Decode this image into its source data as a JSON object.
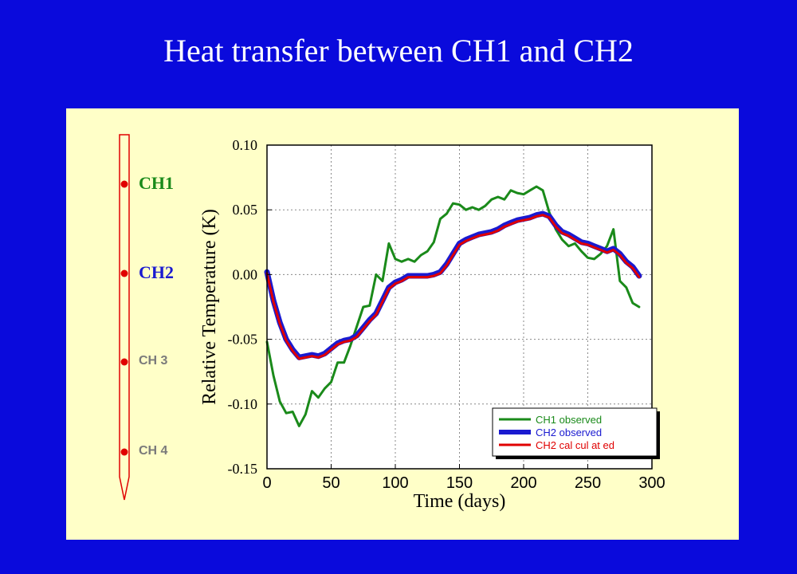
{
  "slide": {
    "title": "Heat transfer between CH1 and CH2"
  },
  "probe": {
    "channels": [
      {
        "label": "CH1",
        "color": "#1a8a1a",
        "weight": "bold",
        "size": "large"
      },
      {
        "label": "CH2",
        "color": "#1a1ad0",
        "weight": "bold",
        "size": "large"
      },
      {
        "label": "CH 3",
        "color": "#7a7a7a",
        "weight": "bold",
        "size": "small"
      },
      {
        "label": "CH 4",
        "color": "#7a7a7a",
        "weight": "bold",
        "size": "small"
      }
    ],
    "dot_color": "#e00000",
    "outline_color": "#e00000"
  },
  "chart_data": {
    "type": "line",
    "xlabel": "Time (days)",
    "ylabel": "Relative Temperature (K)",
    "xlim": [
      0,
      300
    ],
    "ylim": [
      -0.15,
      0.1
    ],
    "xticks": [
      "0",
      "50",
      "100",
      "150",
      "200",
      "250",
      "300"
    ],
    "yticks": [
      "0.10",
      "0.05",
      "0.00",
      "-0.05",
      "-0.10",
      "-0.15"
    ],
    "grid": true,
    "legend_position": "bottom-right",
    "series": [
      {
        "name": "CH1  observed",
        "color": "#1a8a1a",
        "x": [
          0,
          5,
          10,
          15,
          20,
          25,
          30,
          35,
          40,
          45,
          50,
          55,
          60,
          65,
          70,
          75,
          80,
          85,
          90,
          95,
          100,
          105,
          110,
          115,
          120,
          125,
          130,
          135,
          140,
          145,
          150,
          155,
          160,
          165,
          170,
          175,
          180,
          185,
          190,
          195,
          200,
          205,
          210,
          215,
          220,
          225,
          230,
          235,
          240,
          245,
          250,
          255,
          260,
          265,
          270,
          275,
          280,
          285,
          290
        ],
        "y": [
          -0.052,
          -0.078,
          -0.098,
          -0.107,
          -0.106,
          -0.117,
          -0.108,
          -0.09,
          -0.095,
          -0.088,
          -0.083,
          -0.068,
          -0.068,
          -0.055,
          -0.04,
          -0.025,
          -0.024,
          0.0,
          -0.005,
          0.024,
          0.012,
          0.01,
          0.012,
          0.01,
          0.015,
          0.018,
          0.025,
          0.043,
          0.047,
          0.055,
          0.054,
          0.05,
          0.052,
          0.05,
          0.053,
          0.058,
          0.06,
          0.058,
          0.065,
          0.063,
          0.062,
          0.065,
          0.068,
          0.065,
          0.048,
          0.035,
          0.027,
          0.022,
          0.024,
          0.018,
          0.013,
          0.012,
          0.016,
          0.022,
          0.035,
          -0.005,
          -0.01,
          -0.022,
          -0.025
        ]
      },
      {
        "name": "CH2  observed",
        "color": "#1a1ad0",
        "x": [
          0,
          5,
          10,
          15,
          20,
          25,
          30,
          35,
          40,
          45,
          50,
          55,
          60,
          65,
          70,
          75,
          80,
          85,
          90,
          95,
          100,
          105,
          110,
          115,
          120,
          125,
          130,
          135,
          140,
          145,
          150,
          155,
          160,
          165,
          170,
          175,
          180,
          185,
          190,
          195,
          200,
          205,
          210,
          215,
          220,
          225,
          230,
          235,
          240,
          245,
          250,
          255,
          260,
          265,
          270,
          275,
          280,
          285,
          290
        ],
        "y": [
          0.002,
          -0.02,
          -0.037,
          -0.05,
          -0.058,
          -0.064,
          -0.063,
          -0.062,
          -0.063,
          -0.061,
          -0.057,
          -0.053,
          -0.051,
          -0.05,
          -0.047,
          -0.041,
          -0.035,
          -0.03,
          -0.02,
          -0.01,
          -0.006,
          -0.004,
          -0.001,
          -0.001,
          -0.001,
          -0.001,
          0.0,
          0.002,
          0.008,
          0.016,
          0.024,
          0.027,
          0.029,
          0.031,
          0.032,
          0.033,
          0.035,
          0.038,
          0.04,
          0.042,
          0.043,
          0.044,
          0.046,
          0.047,
          0.045,
          0.038,
          0.033,
          0.031,
          0.028,
          0.025,
          0.024,
          0.022,
          0.02,
          0.018,
          0.02,
          0.016,
          0.01,
          0.006,
          -0.001
        ]
      },
      {
        "name": "CH2  cal cul at ed",
        "color": "#e00000",
        "x": [
          0,
          5,
          10,
          15,
          20,
          25,
          30,
          35,
          40,
          45,
          50,
          55,
          60,
          65,
          70,
          75,
          80,
          85,
          90,
          95,
          100,
          105,
          110,
          115,
          120,
          125,
          130,
          135,
          140,
          145,
          150,
          155,
          160,
          165,
          170,
          175,
          180,
          185,
          190,
          195,
          200,
          205,
          210,
          215,
          220,
          225,
          230,
          235,
          240,
          245,
          250,
          255,
          260,
          265,
          270,
          275,
          280,
          285,
          290
        ],
        "y": [
          0.001,
          -0.021,
          -0.038,
          -0.051,
          -0.059,
          -0.065,
          -0.064,
          -0.063,
          -0.064,
          -0.062,
          -0.058,
          -0.054,
          -0.052,
          -0.051,
          -0.048,
          -0.042,
          -0.036,
          -0.031,
          -0.021,
          -0.011,
          -0.007,
          -0.005,
          -0.002,
          -0.002,
          -0.002,
          -0.002,
          -0.001,
          0.001,
          0.007,
          0.015,
          0.023,
          0.026,
          0.028,
          0.03,
          0.031,
          0.032,
          0.034,
          0.037,
          0.039,
          0.041,
          0.042,
          0.043,
          0.045,
          0.046,
          0.044,
          0.037,
          0.032,
          0.03,
          0.027,
          0.024,
          0.023,
          0.021,
          0.019,
          0.017,
          0.019,
          0.015,
          0.009,
          0.005,
          -0.002
        ]
      }
    ]
  }
}
